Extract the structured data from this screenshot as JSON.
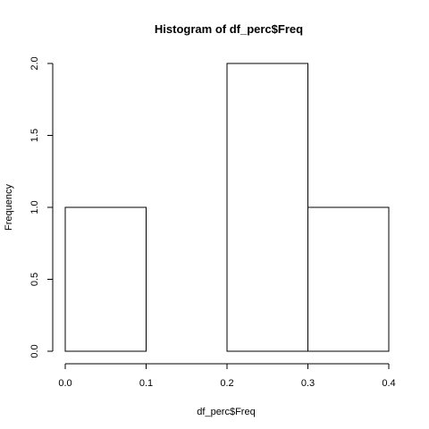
{
  "chart_data": {
    "type": "bar",
    "subtype": "histogram",
    "title": "Histogram of df_perc$Freq",
    "xlabel": "df_perc$Freq",
    "ylabel": "Frequency",
    "bins": [
      {
        "start": 0.0,
        "end": 0.1,
        "count": 1
      },
      {
        "start": 0.1,
        "end": 0.2,
        "count": 0
      },
      {
        "start": 0.2,
        "end": 0.3,
        "count": 2
      },
      {
        "start": 0.3,
        "end": 0.4,
        "count": 1
      }
    ],
    "xlim": [
      0.0,
      0.4
    ],
    "ylim": [
      0.0,
      2.0
    ],
    "xticks": [
      {
        "value": 0.0,
        "label": "0.0"
      },
      {
        "value": 0.1,
        "label": "0.1"
      },
      {
        "value": 0.2,
        "label": "0.2"
      },
      {
        "value": 0.3,
        "label": "0.3"
      },
      {
        "value": 0.4,
        "label": "0.4"
      }
    ],
    "yticks": [
      {
        "value": 0.0,
        "label": "0.0"
      },
      {
        "value": 0.5,
        "label": "0.5"
      },
      {
        "value": 1.0,
        "label": "1.0"
      },
      {
        "value": 1.5,
        "label": "1.5"
      },
      {
        "value": 2.0,
        "label": "2.0"
      }
    ],
    "grid": false,
    "legend": "none",
    "colors": {
      "bar_fill": "#ffffff",
      "bar_stroke": "#000000"
    }
  }
}
